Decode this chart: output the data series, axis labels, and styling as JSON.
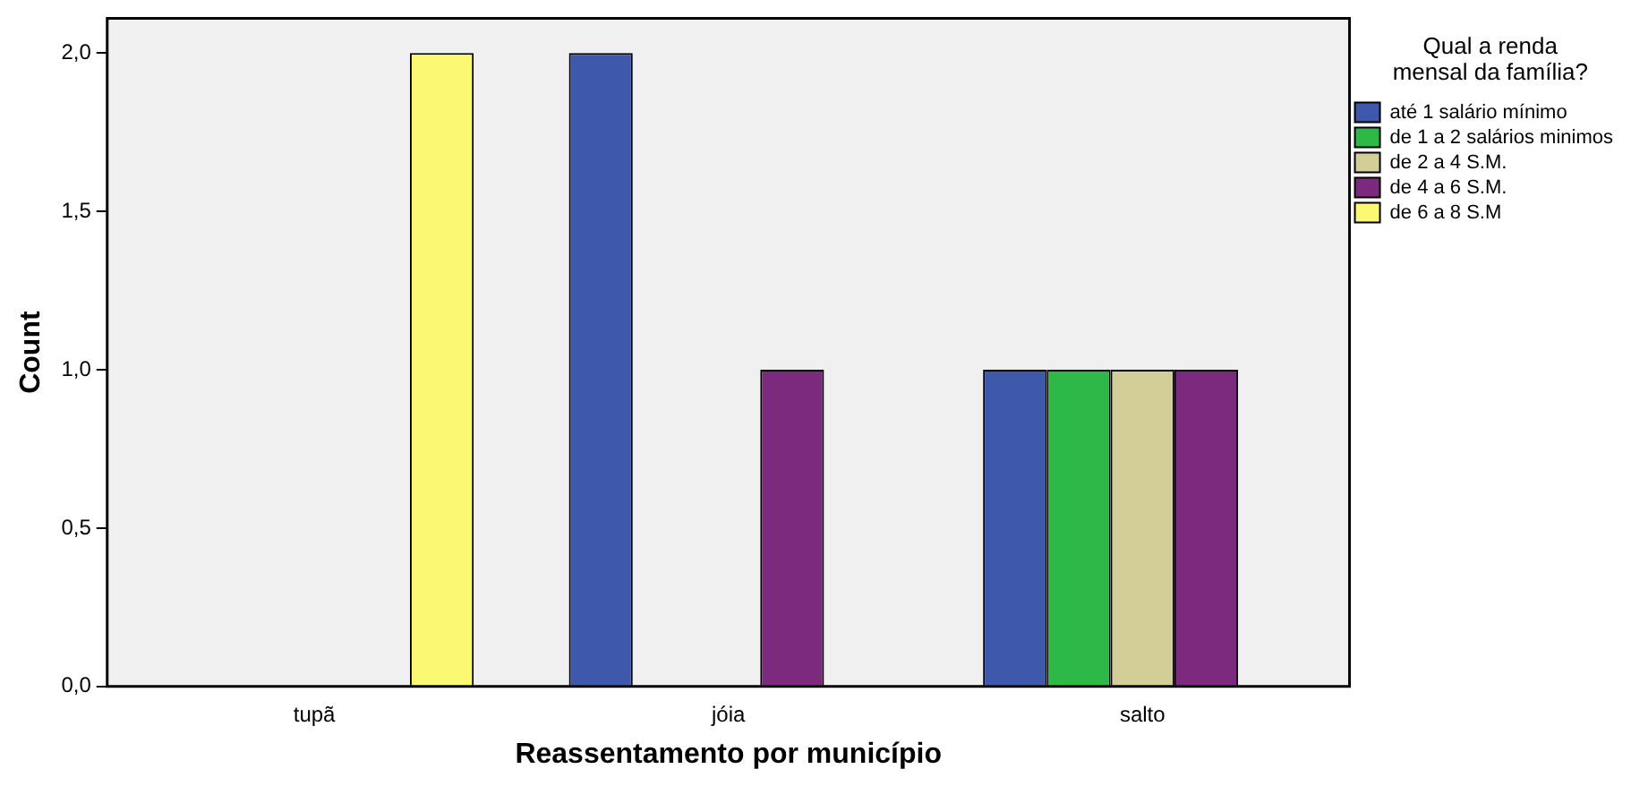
{
  "chart_data": {
    "type": "bar",
    "xlabel": "Reassentamento por município",
    "ylabel": "Count",
    "legend_title": "Qual a renda mensal da família?",
    "legend": "right",
    "grid": false,
    "categories": [
      "tupã",
      "jóia",
      "salto"
    ],
    "series": [
      {
        "name": "até 1 salário mínimo",
        "color": "#3e58ac",
        "values": [
          null,
          2,
          1
        ]
      },
      {
        "name": "de 1 a 2 salários minimos",
        "color": "#2eb848",
        "values": [
          null,
          null,
          1
        ]
      },
      {
        "name": "de 2 a 4 S.M.",
        "color": "#d3ce97",
        "values": [
          null,
          null,
          1
        ]
      },
      {
        "name": "de 4 a 6 S.M.",
        "color": "#7b2a7e",
        "values": [
          null,
          1,
          1
        ]
      },
      {
        "name": "de 6 a 8 S.M",
        "color": "#fbf873",
        "values": [
          2,
          null,
          null
        ]
      }
    ],
    "ylim": [
      0,
      2.11
    ],
    "yticks": [
      {
        "value": 0,
        "label": "0,0"
      },
      {
        "value": 0.5,
        "label": "0,5"
      },
      {
        "value": 1,
        "label": "1,0"
      },
      {
        "value": 1.5,
        "label": "1,5"
      },
      {
        "value": 2,
        "label": "2,0"
      }
    ]
  }
}
